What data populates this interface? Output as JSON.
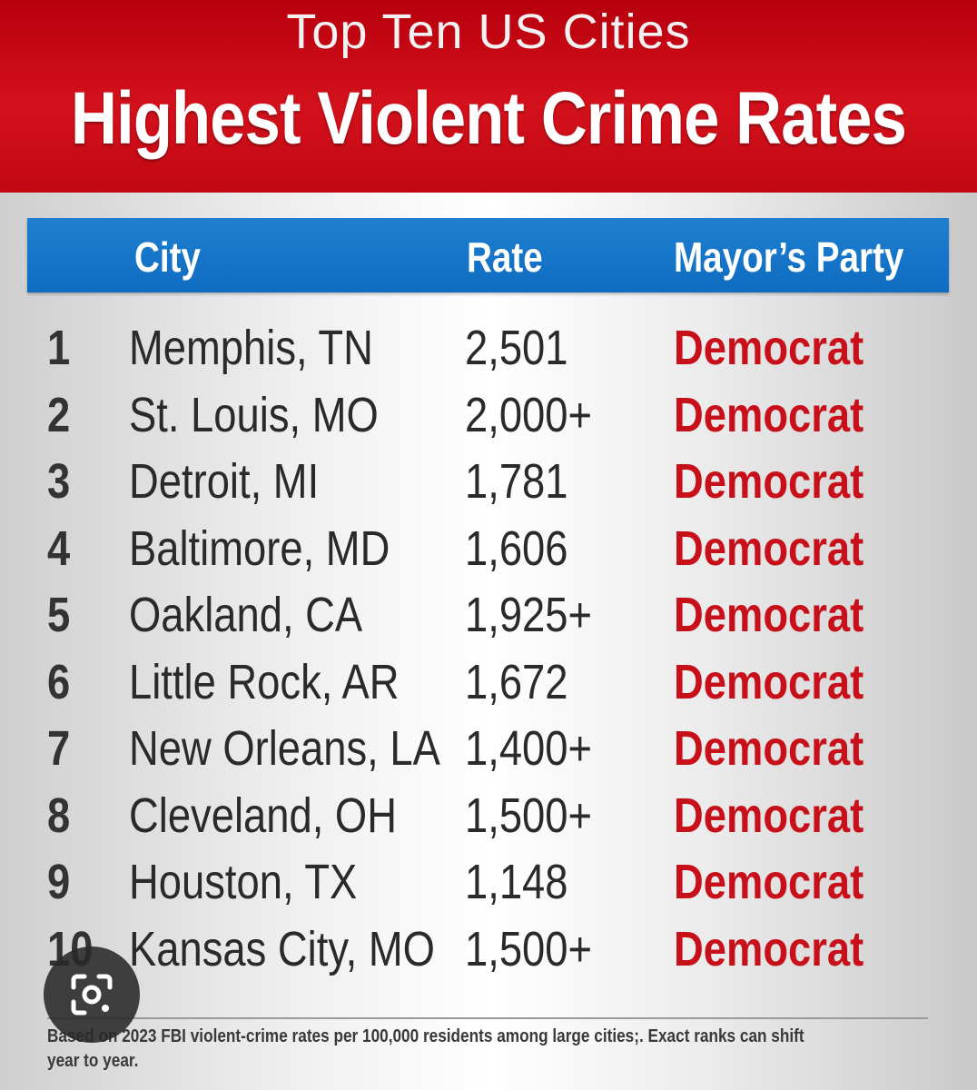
{
  "header": {
    "subtitle": "Top Ten US Cities",
    "title": "Highest Violent Crime Rates"
  },
  "columns": {
    "city": "City",
    "rate": "Rate",
    "party": "Mayor’s Party"
  },
  "chart_data": {
    "type": "table",
    "columns": [
      "",
      "City",
      "Rate",
      "Mayor’s Party"
    ],
    "rows": [
      {
        "rank": "1",
        "city": "Memphis, TN",
        "rate": "2,501",
        "party": "Democrat"
      },
      {
        "rank": "2",
        "city": "St. Louis, MO",
        "rate": "2,000+",
        "party": "Democrat"
      },
      {
        "rank": "3",
        "city": "Detroit, MI",
        "rate": "1,781",
        "party": "Democrat"
      },
      {
        "rank": "4",
        "city": "Baltimore, MD",
        "rate": "1,606",
        "party": "Democrat"
      },
      {
        "rank": "5",
        "city": "Oakland, CA",
        "rate": "1,925+",
        "party": "Democrat"
      },
      {
        "rank": "6",
        "city": "Little Rock, AR",
        "rate": "1,672",
        "party": "Democrat"
      },
      {
        "rank": "7",
        "city": "New Orleans, LA",
        "rate": "1,400+",
        "party": "Democrat"
      },
      {
        "rank": "8",
        "city": "Cleveland, OH",
        "rate": "1,500+",
        "party": "Democrat"
      },
      {
        "rank": "9",
        "city": "Houston, TX",
        "rate": "1,148",
        "party": "Democrat"
      },
      {
        "rank": "10",
        "city": "Kansas City, MO",
        "rate": "1,500+",
        "party": "Democrat"
      }
    ]
  },
  "footnote": "Based on 2023 FBI violent-crime rates per 100,000 residents among large cities;. Exact ranks can shift year to year.",
  "overlay": {
    "icon": "lens-camera-icon"
  },
  "colors": {
    "banner_red": "#c8101a",
    "header_blue": "#1976c8",
    "party_red": "#c8101a"
  }
}
